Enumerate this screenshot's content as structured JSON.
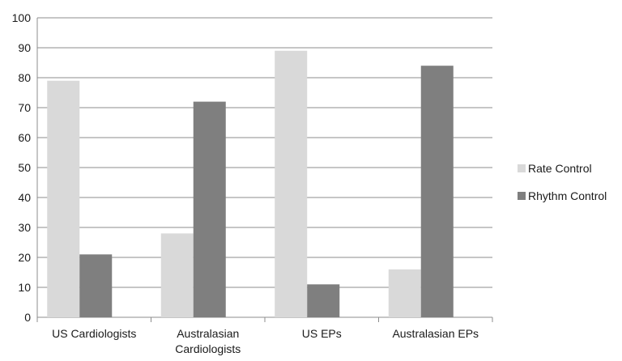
{
  "chart_data": {
    "type": "bar",
    "title": "",
    "xlabel": "",
    "ylabel": "",
    "ylim": [
      0,
      100
    ],
    "yticks": [
      0,
      10,
      20,
      30,
      40,
      50,
      60,
      70,
      80,
      90,
      100
    ],
    "grid": "horizontal",
    "legend_position": "right",
    "categories": [
      [
        "US Cardiologists"
      ],
      [
        "Australasian",
        "Cardiologists"
      ],
      [
        "US EPs"
      ],
      [
        "Australasian EPs"
      ]
    ],
    "series": [
      {
        "name": "Rate Control",
        "color": "#d9d9d9",
        "values": [
          79,
          28,
          89,
          16
        ]
      },
      {
        "name": "Rhythm Control",
        "color": "#7f7f7f",
        "values": [
          21,
          72,
          11,
          84
        ]
      }
    ]
  }
}
